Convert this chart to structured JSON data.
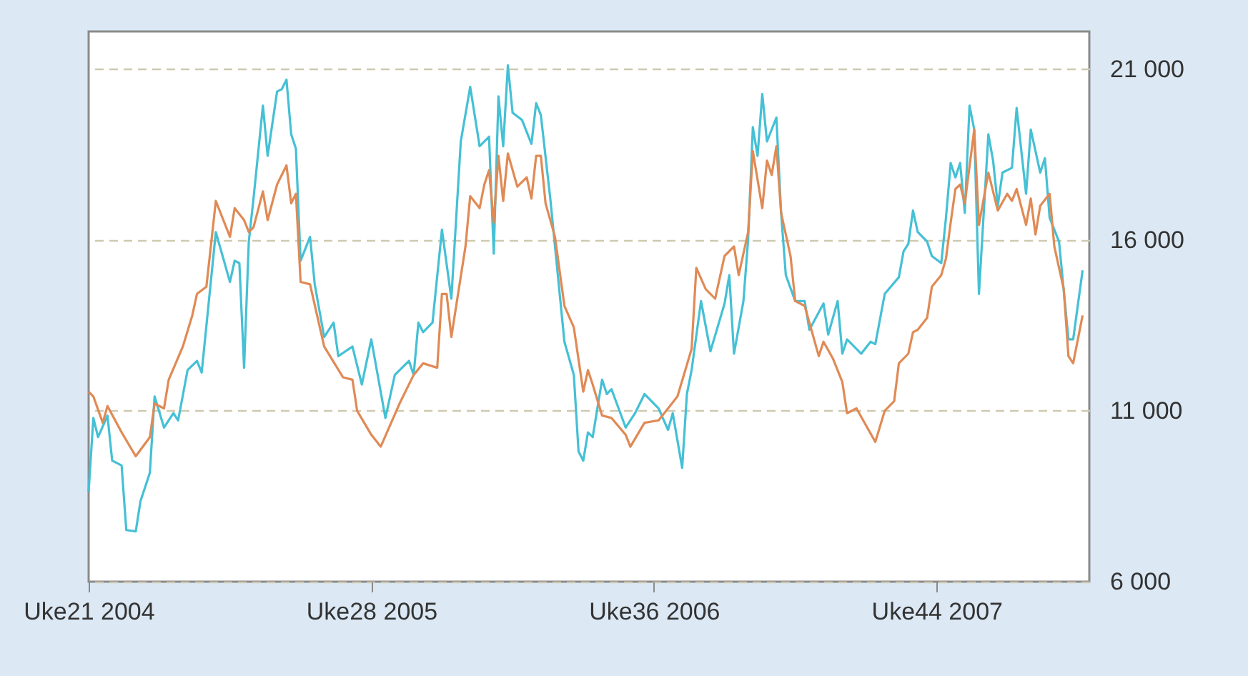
{
  "chart_data": {
    "type": "line",
    "xlim": [
      "2004-05-17",
      "2008-06-12"
    ],
    "xticks": [
      {
        "value": "2004-05-17",
        "label": "Uke21 2004"
      },
      {
        "value": "2005-07-11",
        "label": "Uke28 2005"
      },
      {
        "value": "2006-09-04",
        "label": "Uke36 2006"
      },
      {
        "value": "2007-10-29",
        "label": "Uke44 2007"
      }
    ],
    "ylim": [
      6000,
      22100
    ],
    "yticks": [
      {
        "value": 6000,
        "label": "6 000"
      },
      {
        "value": 11000,
        "label": "11 000"
      },
      {
        "value": 16000,
        "label": "16 000"
      },
      {
        "value": 21000,
        "label": "21 000"
      }
    ],
    "grid": "y",
    "series": [
      {
        "color": "#45c0d5",
        "x": [
          "2004-05-17",
          "2004-05-24",
          "2004-05-31",
          "2004-06-14",
          "2004-06-21",
          "2004-07-05",
          "2004-07-12",
          "2004-07-26",
          "2004-08-02",
          "2004-08-16",
          "2004-08-23",
          "2004-09-06",
          "2004-09-20",
          "2004-09-27",
          "2004-10-11",
          "2004-10-25",
          "2004-11-01",
          "2004-11-22",
          "2004-12-13",
          "2004-12-20",
          "2004-12-27",
          "2005-01-03",
          "2005-01-10",
          "2005-01-17",
          "2005-01-31",
          "2005-02-07",
          "2005-02-21",
          "2005-02-28",
          "2005-03-07",
          "2005-03-14",
          "2005-03-21",
          "2005-03-28",
          "2005-04-11",
          "2005-04-18",
          "2005-05-02",
          "2005-05-16",
          "2005-05-23",
          "2005-06-13",
          "2005-06-27",
          "2005-07-11",
          "2005-08-01",
          "2005-08-15",
          "2005-09-05",
          "2005-09-12",
          "2005-09-19",
          "2005-09-26",
          "2005-10-10",
          "2005-10-24",
          "2005-11-07",
          "2005-11-21",
          "2005-12-05",
          "2005-12-19",
          "2006-01-02",
          "2006-01-09",
          "2006-01-16",
          "2006-01-23",
          "2006-01-30",
          "2006-02-06",
          "2006-02-20",
          "2006-03-06",
          "2006-03-13",
          "2006-03-20",
          "2006-04-03",
          "2006-04-24",
          "2006-05-08",
          "2006-05-15",
          "2006-05-22",
          "2006-05-29",
          "2006-06-05",
          "2006-06-19",
          "2006-06-26",
          "2006-07-03",
          "2006-07-24",
          "2006-08-07",
          "2006-08-21",
          "2006-09-11",
          "2006-09-25",
          "2006-10-02",
          "2006-10-16",
          "2006-10-23",
          "2006-10-30",
          "2006-11-13",
          "2006-11-27",
          "2006-12-18",
          "2006-12-25",
          "2007-01-01",
          "2007-01-15",
          "2007-01-22",
          "2007-01-29",
          "2007-02-05",
          "2007-02-12",
          "2007-02-19",
          "2007-03-05",
          "2007-03-12",
          "2007-03-19",
          "2007-04-02",
          "2007-04-16",
          "2007-04-23",
          "2007-05-14",
          "2007-05-21",
          "2007-06-04",
          "2007-06-11",
          "2007-06-18",
          "2007-07-09",
          "2007-07-23",
          "2007-07-30",
          "2007-08-13",
          "2007-09-03",
          "2007-09-10",
          "2007-09-17",
          "2007-09-24",
          "2007-10-01",
          "2007-10-15",
          "2007-10-22",
          "2007-11-05",
          "2007-11-12",
          "2007-11-19",
          "2007-11-26",
          "2007-12-03",
          "2007-12-10",
          "2007-12-17",
          "2007-12-24",
          "2007-12-31",
          "2008-01-14",
          "2008-01-21",
          "2008-01-28",
          "2008-02-04",
          "2008-02-18",
          "2008-02-25",
          "2008-03-10",
          "2008-03-17",
          "2008-03-31",
          "2008-04-07",
          "2008-04-14",
          "2008-04-28",
          "2008-05-12",
          "2008-05-19",
          "2008-06-02"
        ],
        "values": [
          8630,
          10790,
          10230,
          10860,
          9540,
          9400,
          7510,
          7470,
          8350,
          9190,
          11420,
          10510,
          10930,
          10720,
          12190,
          12460,
          12120,
          16230,
          14770,
          15390,
          15320,
          12260,
          15950,
          17210,
          19930,
          18460,
          20340,
          20410,
          20690,
          19090,
          18670,
          15390,
          16090,
          14700,
          13160,
          13580,
          12600,
          12880,
          11770,
          13090,
          10790,
          12050,
          12460,
          12050,
          13580,
          13300,
          13580,
          16300,
          14280,
          18880,
          20480,
          18740,
          19020,
          15600,
          20200,
          18740,
          21110,
          19720,
          19510,
          18810,
          20000,
          19650,
          17210,
          13020,
          12050,
          9810,
          9540,
          10370,
          10230,
          11910,
          11490,
          11630,
          10510,
          10930,
          11490,
          11070,
          10440,
          10930,
          9330,
          11490,
          12190,
          14210,
          12740,
          14140,
          14970,
          12670,
          14210,
          16020,
          19300,
          18460,
          20270,
          18880,
          19580,
          16790,
          14970,
          14210,
          14210,
          13370,
          14140,
          13230,
          14210,
          12670,
          13090,
          12670,
          13020,
          12950,
          14420,
          14910,
          15670,
          15880,
          16860,
          16230,
          15950,
          15530,
          15320,
          16650,
          18250,
          17830,
          18250,
          16790,
          19930,
          19230,
          14420,
          19090,
          18320,
          17000,
          17970,
          18110,
          19860,
          17350,
          19230,
          17970,
          18390,
          16650,
          15950,
          13090,
          13090,
          15110
        ]
      },
      {
        "color": "#e08a55",
        "x": [
          "2004-05-17",
          "2004-05-24",
          "2004-06-07",
          "2004-06-14",
          "2004-07-05",
          "2004-07-26",
          "2004-08-16",
          "2004-08-23",
          "2004-09-06",
          "2004-09-13",
          "2004-10-04",
          "2004-10-18",
          "2004-10-25",
          "2004-11-08",
          "2004-11-22",
          "2004-12-13",
          "2004-12-20",
          "2005-01-03",
          "2005-01-10",
          "2005-01-17",
          "2005-01-31",
          "2005-02-07",
          "2005-02-21",
          "2005-03-07",
          "2005-03-14",
          "2005-03-21",
          "2005-03-28",
          "2005-04-11",
          "2005-05-02",
          "2005-05-30",
          "2005-06-13",
          "2005-06-20",
          "2005-07-11",
          "2005-07-25",
          "2005-08-22",
          "2005-09-12",
          "2005-09-26",
          "2005-10-17",
          "2005-10-24",
          "2005-10-31",
          "2005-11-07",
          "2005-11-28",
          "2005-12-05",
          "2005-12-19",
          "2005-12-26",
          "2006-01-02",
          "2006-01-09",
          "2006-01-16",
          "2006-01-23",
          "2006-01-30",
          "2006-02-13",
          "2006-02-27",
          "2006-03-06",
          "2006-03-13",
          "2006-03-20",
          "2006-03-27",
          "2006-04-10",
          "2006-04-24",
          "2006-05-08",
          "2006-05-22",
          "2006-05-29",
          "2006-06-05",
          "2006-06-19",
          "2006-07-03",
          "2006-07-24",
          "2006-07-31",
          "2006-08-21",
          "2006-09-11",
          "2006-09-25",
          "2006-10-09",
          "2006-10-30",
          "2006-11-06",
          "2006-11-20",
          "2006-12-04",
          "2006-12-18",
          "2007-01-01",
          "2007-01-08",
          "2007-01-22",
          "2007-01-29",
          "2007-02-12",
          "2007-02-19",
          "2007-02-26",
          "2007-03-05",
          "2007-03-12",
          "2007-03-26",
          "2007-04-02",
          "2007-04-16",
          "2007-05-07",
          "2007-05-14",
          "2007-05-28",
          "2007-06-11",
          "2007-06-18",
          "2007-07-02",
          "2007-07-16",
          "2007-07-30",
          "2007-08-13",
          "2007-08-27",
          "2007-09-03",
          "2007-09-17",
          "2007-09-24",
          "2007-10-01",
          "2007-10-15",
          "2007-10-22",
          "2007-11-05",
          "2007-11-12",
          "2007-11-19",
          "2007-11-26",
          "2007-12-03",
          "2007-12-10",
          "2007-12-24",
          "2007-12-31",
          "2008-01-14",
          "2008-01-28",
          "2008-02-11",
          "2008-02-18",
          "2008-02-25",
          "2008-03-10",
          "2008-03-17",
          "2008-03-24",
          "2008-03-31",
          "2008-04-14",
          "2008-04-21",
          "2008-05-05",
          "2008-05-12",
          "2008-05-19",
          "2008-06-02"
        ],
        "values": [
          11560,
          11420,
          10650,
          11140,
          10370,
          9670,
          10230,
          11210,
          11070,
          11910,
          12880,
          13790,
          14420,
          14630,
          17140,
          16090,
          16930,
          16580,
          16230,
          16370,
          17420,
          16580,
          17620,
          18180,
          17070,
          17350,
          14770,
          14700,
          12880,
          11980,
          11910,
          11000,
          10300,
          9950,
          11210,
          12050,
          12390,
          12260,
          14420,
          14420,
          13160,
          15810,
          17280,
          16930,
          17620,
          18040,
          16510,
          18460,
          17140,
          18530,
          17560,
          17830,
          17210,
          18460,
          18460,
          17070,
          16090,
          14070,
          13440,
          11560,
          12190,
          11770,
          10860,
          10790,
          10300,
          9950,
          10650,
          10720,
          11070,
          11420,
          12810,
          15180,
          14560,
          14280,
          15530,
          15810,
          14970,
          16230,
          18600,
          16930,
          18320,
          17900,
          18740,
          16790,
          15530,
          14210,
          14070,
          12600,
          13020,
          12530,
          11840,
          10930,
          11070,
          10580,
          10090,
          11000,
          11280,
          12390,
          12670,
          13300,
          13370,
          13720,
          14630,
          14970,
          15460,
          16510,
          17490,
          17620,
          17070,
          19230,
          16440,
          17970,
          16860,
          17350,
          17140,
          17490,
          16440,
          17210,
          16160,
          17000,
          17350,
          15810,
          14560,
          12600,
          12390,
          13790
        ]
      }
    ]
  }
}
